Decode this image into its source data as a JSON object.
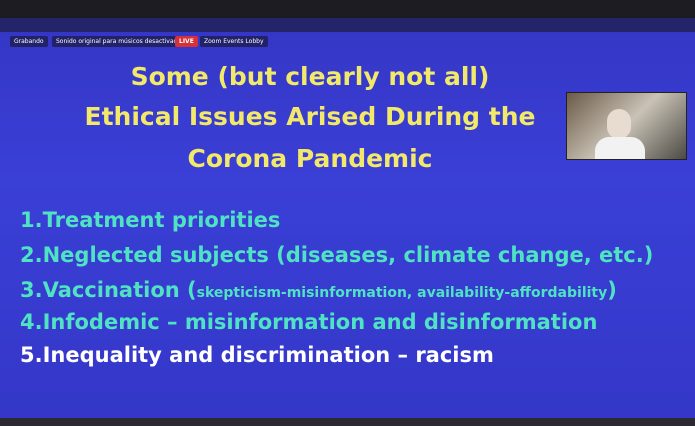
{
  "toolbar": {
    "recording": "Grabando",
    "sound": "Sonido original para músicos desactivado",
    "live": "LIVE",
    "lobby": "Zoom Events Lobby"
  },
  "slide": {
    "title": [
      "Some (but clearly not all)",
      "Ethical Issues Arised During the",
      "Corona Pandemic"
    ],
    "items": [
      {
        "text": "1.Treatment priorities"
      },
      {
        "text": "2.Neglected subjects (diseases, climate change, etc.)"
      },
      {
        "text": "3.Vaccination (",
        "detail": "skepticism-misinformation, availability-affordability",
        "close": ")"
      },
      {
        "text": "4.Infodemic – misinformation and disinformation"
      },
      {
        "text": "5.Inequality and discrimination – racism"
      }
    ]
  }
}
